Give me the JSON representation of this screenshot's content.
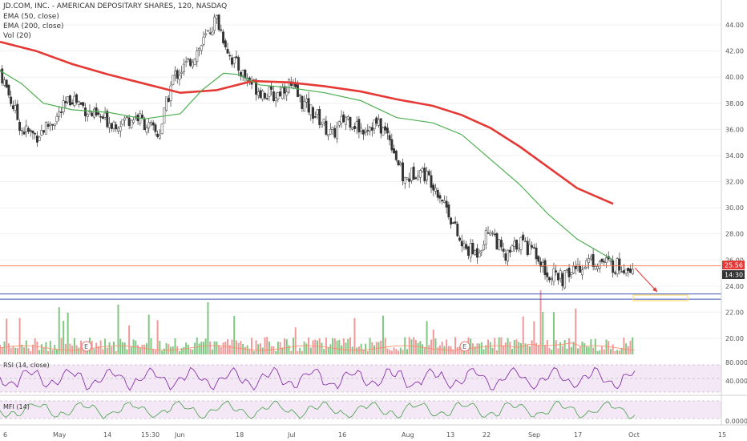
{
  "legend": {
    "title": "JD.COM, INC. - AMERICAN DEPOSITARY SHARES, 120, NASDAQ",
    "ema50": "EMA (50, close)",
    "ema200": "EMA (200, close)",
    "vol": "Vol (20)"
  },
  "indicators": {
    "rsi_label": "RSI (14, close)",
    "mfi_label": "MFI (14)",
    "rsi_level": "80.0000",
    "rsi_mid": "40.0000",
    "mfi_level": "0.0000"
  },
  "price_tag": {
    "price": "25.56",
    "time": "14:30"
  },
  "earnings_marker": "E",
  "colors": {
    "up": "#26a69a",
    "down": "#ef5350",
    "ema50": "#4caf50",
    "ema200": "#e53935",
    "price_line": "#ff7043",
    "support": "#3f51b5",
    "target_box": "#ffd54f",
    "rsi_line": "#7b1fa2",
    "rsi_band": "#f3e5f5",
    "mfi_line": "#43a047",
    "mfi_band": "#f3e5f5",
    "vol_ma": "#ff8a65"
  },
  "chart_data": {
    "type": "line",
    "title": "JD.COM, INC. - AMERICAN DEPOSITARY SHARES, 120, NASDAQ",
    "xlabel": "",
    "ylabel": "",
    "ylim": [
      19,
      45
    ],
    "x_ticks": [
      "6",
      "May",
      "14",
      "15:30",
      "Jun",
      "18",
      "Jul",
      "16",
      "Aug",
      "13",
      "22",
      "Sep",
      "17",
      "Oct",
      "15"
    ],
    "y_ticks": [
      "44.00",
      "42.00",
      "40.00",
      "38.00",
      "36.00",
      "34.00",
      "32.00",
      "30.00",
      "28.00",
      "26.00",
      "24.00",
      "22.00",
      "20.00"
    ],
    "support_levels": [
      23.4,
      23.0
    ],
    "last_price": 25.56,
    "series": [
      {
        "name": "EMA (50, close)",
        "x": [
          0,
          0.03,
          0.06,
          0.1,
          0.15,
          0.2,
          0.25,
          0.28,
          0.31,
          0.33,
          0.36,
          0.4,
          0.45,
          0.5,
          0.55,
          0.6,
          0.64,
          0.68,
          0.72,
          0.76,
          0.8,
          0.85
        ],
        "values": [
          40.5,
          39.5,
          38.0,
          37.5,
          37.3,
          36.8,
          37.2,
          39.0,
          40.3,
          40.2,
          39.4,
          39.2,
          38.8,
          38.2,
          36.9,
          36.5,
          35.6,
          33.7,
          31.8,
          29.5,
          27.6,
          26.0
        ]
      },
      {
        "name": "EMA (200, close)",
        "x": [
          0,
          0.05,
          0.1,
          0.15,
          0.2,
          0.25,
          0.3,
          0.35,
          0.4,
          0.45,
          0.5,
          0.55,
          0.6,
          0.64,
          0.68,
          0.72,
          0.76,
          0.8,
          0.85
        ],
        "values": [
          42.7,
          42.0,
          41.0,
          40.2,
          39.5,
          38.8,
          39.0,
          39.7,
          39.6,
          39.3,
          38.9,
          38.3,
          37.8,
          37.1,
          36.1,
          34.7,
          33.1,
          31.5,
          30.3
        ]
      },
      {
        "name": "Close",
        "x": [
          0,
          0.03,
          0.05,
          0.08,
          0.1,
          0.13,
          0.16,
          0.19,
          0.22,
          0.24,
          0.26,
          0.28,
          0.3,
          0.32,
          0.34,
          0.36,
          0.38,
          0.4,
          0.42,
          0.44,
          0.46,
          0.48,
          0.5,
          0.52,
          0.54,
          0.56,
          0.58,
          0.6,
          0.62,
          0.64,
          0.66,
          0.68,
          0.7,
          0.72,
          0.74,
          0.76,
          0.78,
          0.8,
          0.82,
          0.84,
          0.85
        ],
        "values": [
          40.5,
          36.0,
          35.5,
          37.0,
          38.5,
          37.0,
          36.5,
          37.0,
          35.5,
          40.0,
          41.0,
          42.5,
          44.5,
          41.5,
          40.0,
          39.0,
          38.5,
          39.5,
          38.0,
          37.0,
          35.5,
          37.0,
          36.0,
          36.5,
          35.5,
          32.0,
          33.0,
          32.0,
          30.0,
          27.0,
          26.5,
          28.5,
          26.0,
          27.5,
          26.5,
          25.0,
          24.5,
          25.5,
          26.0,
          25.8,
          25.56
        ]
      }
    ]
  }
}
